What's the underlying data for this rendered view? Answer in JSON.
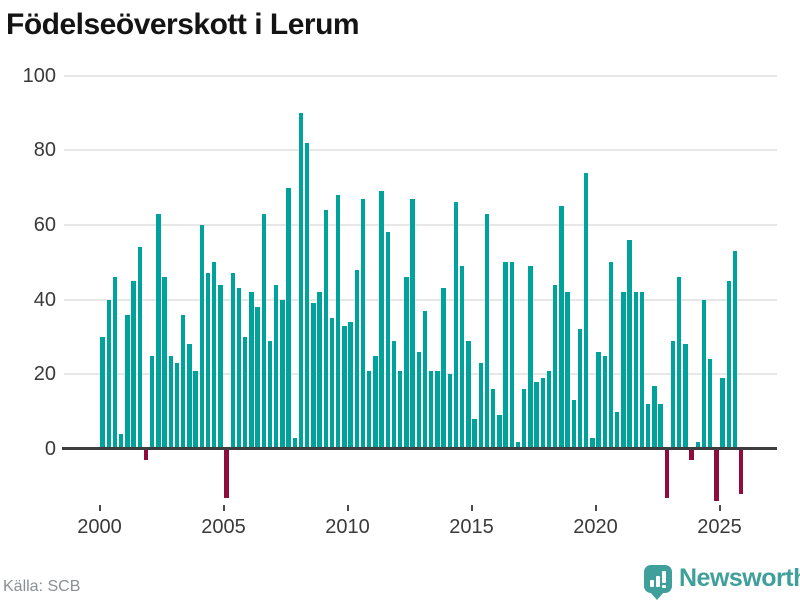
{
  "title": "Födelseöverskott i Lerum",
  "source": {
    "text": "Källa: SCB"
  },
  "brand": {
    "name": "Newsworthy"
  },
  "colors": {
    "positive_bar": "#00a29c",
    "negative_bar": "#900c3f",
    "brand_teal": "#3fa09b",
    "gridline": "#e7e7e7",
    "axis_line": "#3d3d3d",
    "axis_text": "#3a3a3a",
    "title_text": "#141414",
    "source_text": "#8a8f93"
  },
  "chart_data": {
    "type": "bar",
    "title": "Födelseöverskott i Lerum",
    "frequency": "quarterly",
    "start_period": "2000-Q1",
    "end_period": "2025-Q4",
    "x_tick_labels": [
      "2000",
      "2005",
      "2010",
      "2015",
      "2020",
      "2025"
    ],
    "y_tick_values": [
      0,
      20,
      40,
      60,
      80,
      100
    ],
    "ylim": [
      -16,
      100
    ],
    "grid": "horizontal",
    "legend": "none",
    "values": [
      30,
      40,
      46,
      4,
      36,
      45,
      54,
      -3,
      25,
      63,
      46,
      25,
      23,
      36,
      28,
      21,
      60,
      47,
      50,
      44,
      -13,
      47,
      43,
      30,
      42,
      38,
      63,
      29,
      44,
      40,
      70,
      3,
      90,
      82,
      39,
      42,
      64,
      35,
      68,
      33,
      34,
      48,
      67,
      21,
      25,
      69,
      58,
      29,
      21,
      46,
      67,
      26,
      37,
      21,
      21,
      43,
      20,
      66,
      49,
      29,
      8,
      23,
      63,
      16,
      9,
      50,
      50,
      2,
      16,
      49,
      18,
      19,
      21,
      44,
      65,
      42,
      13,
      32,
      74,
      3,
      26,
      25,
      50,
      10,
      42,
      56,
      42,
      42,
      12,
      17,
      12,
      -13,
      29,
      46,
      28,
      -3,
      2,
      40,
      24,
      -14,
      19,
      45,
      53,
      -12
    ]
  }
}
